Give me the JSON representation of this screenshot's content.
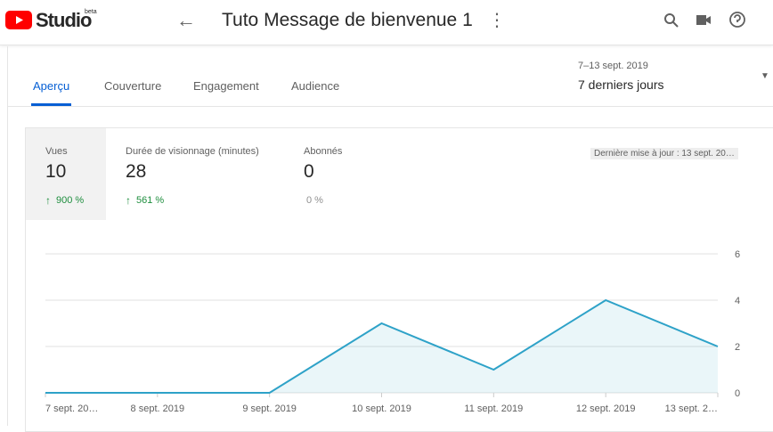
{
  "header": {
    "logo": "Studio",
    "badge": "beta",
    "title": "Tuto Message de bienvenue 1"
  },
  "tabs": [
    "Aperçu",
    "Couverture",
    "Engagement",
    "Audience"
  ],
  "period": {
    "range": "7–13 sept. 2019",
    "label": "7 derniers jours"
  },
  "metrics": [
    {
      "name": "Vues",
      "value": 10,
      "change": "900 %"
    },
    {
      "name": "Durée de visionnage (minutes)",
      "value": 28,
      "change": "561 %"
    },
    {
      "name": "Abonnés",
      "value": 0,
      "change": "0 %"
    }
  ],
  "update": "Dernière mise à jour : 13 sept. 20…",
  "chart_data": {
    "type": "area",
    "categories": [
      "7 sept. 20…",
      "8 sept. 2019",
      "9 sept. 2019",
      "10 sept. 2019",
      "11 sept. 2019",
      "12 sept. 2019",
      "13 sept. 2…"
    ],
    "series": [
      {
        "color": "#2ea2c8",
        "values": [
          0,
          0,
          0,
          3,
          1,
          4,
          2
        ]
      }
    ],
    "ylim": [
      0,
      6
    ],
    "yticks": [
      0,
      2,
      4,
      6
    ],
    "grid": true
  }
}
